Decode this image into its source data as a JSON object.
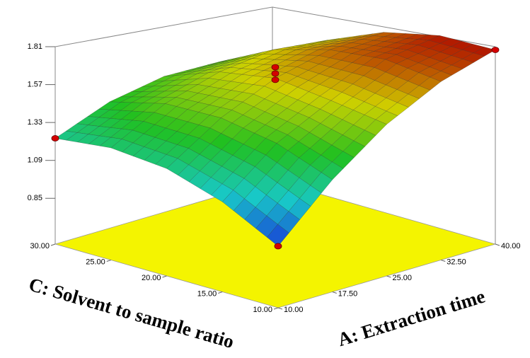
{
  "chart_data": {
    "type": "surface",
    "x_axis_label": "A: Extraction time",
    "y_axis_label": "C: Solvent to sample ratio",
    "xlim": [
      10,
      40
    ],
    "xticks": [
      {
        "value": 10,
        "label": "10.00"
      },
      {
        "value": 17.5,
        "label": "17.50"
      },
      {
        "value": 25,
        "label": "25.00"
      },
      {
        "value": 32.5,
        "label": "32.50"
      },
      {
        "value": 40,
        "label": "40.00"
      }
    ],
    "ylim": [
      10,
      30
    ],
    "yticks": [
      {
        "value": 10,
        "label": "10.00"
      },
      {
        "value": 15,
        "label": "15.00"
      },
      {
        "value": 20,
        "label": "20.00"
      },
      {
        "value": 25,
        "label": "25.00"
      },
      {
        "value": 30,
        "label": "30.00"
      }
    ],
    "zlim": [
      0.56,
      1.81
    ],
    "zticks": [
      0.85,
      1.09,
      1.33,
      1.57,
      1.81
    ],
    "x": [
      10,
      17.5,
      25,
      32.5,
      40
    ],
    "y": [
      10,
      15,
      20,
      25,
      30
    ],
    "z": [
      [
        0.95,
        1.27,
        1.52,
        1.69,
        1.79
      ],
      [
        1.13,
        1.4,
        1.57,
        1.73,
        1.78
      ],
      [
        1.24,
        1.46,
        1.61,
        1.69,
        1.7
      ],
      [
        1.27,
        1.45,
        1.55,
        1.59,
        1.55
      ],
      [
        1.23,
        1.36,
        1.42,
        1.41,
        1.32
      ]
    ],
    "colormap": [
      "#1838d8",
      "#18c8c8",
      "#20c020",
      "#d0d000",
      "#b01000"
    ],
    "floor_color": "#f4f400",
    "design_points": {
      "x": [
        10,
        10,
        25,
        25,
        25,
        40
      ],
      "y": [
        30,
        10,
        20,
        20,
        20,
        10
      ],
      "z": [
        1.23,
        0.95,
        1.6,
        1.64,
        1.68,
        1.79
      ],
      "color": "#d40000"
    }
  }
}
